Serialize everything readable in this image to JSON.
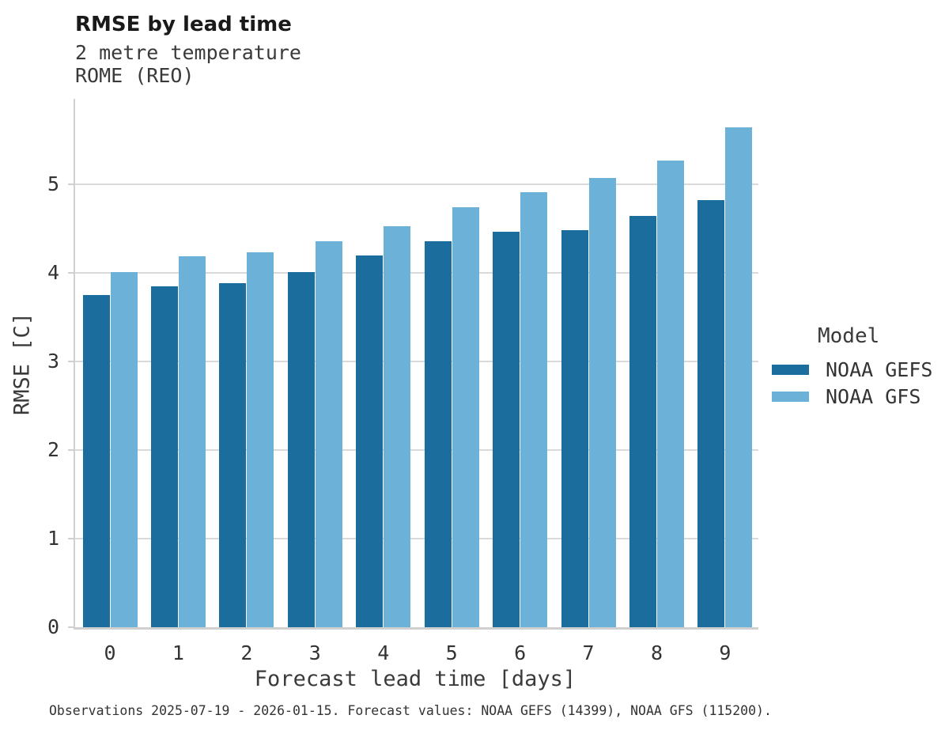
{
  "chart": {
    "title": "RMSE by lead time",
    "subtitle_line1": "2 metre temperature",
    "subtitle_line2": "ROME (REO)"
  },
  "chart_data": {
    "type": "bar",
    "title": "RMSE by lead time",
    "subtitle": [
      "2 metre temperature",
      "ROME (REO)"
    ],
    "categories": [
      "0",
      "1",
      "2",
      "3",
      "4",
      "5",
      "6",
      "7",
      "8",
      "9"
    ],
    "series": [
      {
        "name": "NOAA GEFS",
        "color": "#1b6d9e",
        "values": [
          3.75,
          3.85,
          3.88,
          4.01,
          4.2,
          4.36,
          4.46,
          4.48,
          4.64,
          4.82
        ]
      },
      {
        "name": "NOAA GFS",
        "color": "#6cb1d8",
        "values": [
          4.01,
          4.19,
          4.23,
          4.36,
          4.53,
          4.74,
          4.91,
          5.07,
          5.27,
          5.64
        ]
      }
    ],
    "xlabel": "Forecast lead time [days]",
    "ylabel": "RMSE [C]",
    "ylim": [
      0,
      5.96
    ],
    "yticks": [
      0,
      1,
      2,
      3,
      4,
      5
    ],
    "grid": true,
    "legend": {
      "title": "Model",
      "position": "right"
    }
  },
  "footer": {
    "text": "Observations 2025-07-19 - 2026-01-15. Forecast values: NOAA GEFS (14399), NOAA GFS (115200)."
  }
}
